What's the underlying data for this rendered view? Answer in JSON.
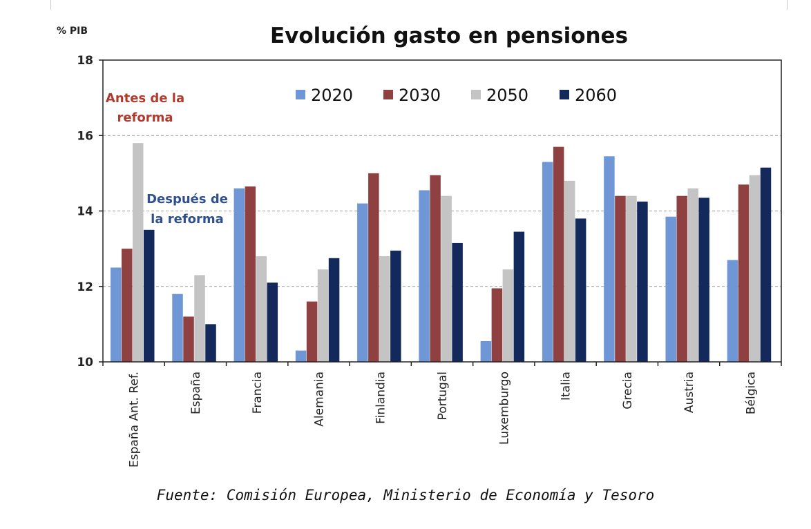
{
  "chart_data": {
    "type": "bar",
    "title": "Evolución gasto en pensiones",
    "ylabel": "% PIB",
    "xlabel": "",
    "ylim": [
      10,
      18
    ],
    "yticks": [
      10,
      12,
      14,
      16,
      18
    ],
    "grid": true,
    "legend_position": "top",
    "categories": [
      "España Ant. Ref.",
      "España",
      "Francia",
      "Alemania",
      "Finlandia",
      "Portugal",
      "Luxemburgo",
      "Italia",
      "Grecia",
      "Austria",
      "Bélgica"
    ],
    "series": [
      {
        "name": "2020",
        "color": "#6f97d6",
        "values": [
          12.5,
          11.8,
          14.6,
          10.3,
          14.2,
          14.55,
          10.55,
          15.3,
          15.45,
          13.85,
          12.7
        ]
      },
      {
        "name": "2030",
        "color": "#8f4040",
        "values": [
          13.0,
          11.2,
          14.65,
          11.6,
          15.0,
          14.95,
          11.95,
          15.7,
          14.4,
          14.4,
          14.7
        ]
      },
      {
        "name": "2050",
        "color": "#c4c4c4",
        "values": [
          15.8,
          12.3,
          12.8,
          12.45,
          12.8,
          14.4,
          12.45,
          14.8,
          14.4,
          14.6,
          14.95
        ]
      },
      {
        "name": "2060",
        "color": "#13295c",
        "values": [
          13.5,
          11.0,
          12.1,
          12.75,
          12.95,
          13.15,
          13.45,
          13.8,
          14.25,
          14.35,
          15.15
        ]
      }
    ],
    "annotations": {
      "before": [
        "Antes de la",
        "reforma"
      ],
      "after": [
        "Después de",
        "la reforma"
      ]
    }
  },
  "source": "Fuente: Comisión Europea, Ministerio de Economía y Tesoro"
}
